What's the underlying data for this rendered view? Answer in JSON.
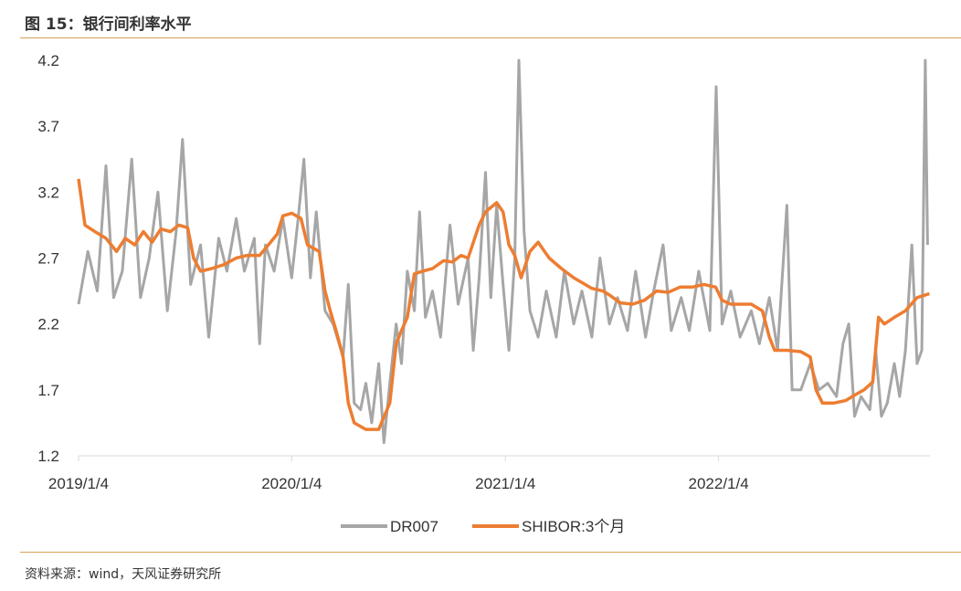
{
  "header": {
    "title": "图 15：银行间利率水平"
  },
  "footer": {
    "source": "资料来源：wind，天风证券研究所"
  },
  "chart_data": {
    "type": "line",
    "title": "",
    "xlabel": "",
    "ylabel": "",
    "ylim": [
      1.2,
      4.2
    ],
    "y_ticks": [
      "4.2",
      "3.7",
      "3.2",
      "2.7",
      "2.2",
      "1.7",
      "1.2"
    ],
    "x_ticks": [
      "2019/1/4",
      "2020/1/4",
      "2021/1/4",
      "2022/1/4"
    ],
    "x_range": [
      "2019/1/4",
      "2023/1/1"
    ],
    "legend_position": "bottom",
    "colors": {
      "DR007": "#a6a6a6",
      "SHIBOR:3个月": "#ed7d31",
      "axis": "#d9d9d9"
    },
    "series": [
      {
        "name": "DR007",
        "points": [
          [
            "2019/1/4",
            2.35
          ],
          [
            "2019/1/20",
            2.75
          ],
          [
            "2019/2/5",
            2.45
          ],
          [
            "2019/2/20",
            3.4
          ],
          [
            "2019/3/5",
            2.4
          ],
          [
            "2019/3/20",
            2.6
          ],
          [
            "2019/4/5",
            3.45
          ],
          [
            "2019/4/20",
            2.4
          ],
          [
            "2019/5/5",
            2.7
          ],
          [
            "2019/5/20",
            3.2
          ],
          [
            "2019/6/5",
            2.3
          ],
          [
            "2019/6/20",
            2.9
          ],
          [
            "2019/7/1",
            3.6
          ],
          [
            "2019/7/15",
            2.5
          ],
          [
            "2019/8/1",
            2.8
          ],
          [
            "2019/8/15",
            2.1
          ],
          [
            "2019/9/1",
            2.85
          ],
          [
            "2019/9/15",
            2.6
          ],
          [
            "2019/10/1",
            3.0
          ],
          [
            "2019/10/15",
            2.6
          ],
          [
            "2019/11/1",
            2.85
          ],
          [
            "2019/11/10",
            2.05
          ],
          [
            "2019/11/20",
            2.8
          ],
          [
            "2019/12/5",
            2.6
          ],
          [
            "2019/12/20",
            3.0
          ],
          [
            "2020/1/4",
            2.55
          ],
          [
            "2020/1/15",
            3.0
          ],
          [
            "2020/1/25",
            3.45
          ],
          [
            "2020/2/5",
            2.55
          ],
          [
            "2020/2/15",
            3.05
          ],
          [
            "2020/3/1",
            2.3
          ],
          [
            "2020/3/15",
            2.2
          ],
          [
            "2020/4/1",
            1.95
          ],
          [
            "2020/4/10",
            2.5
          ],
          [
            "2020/4/20",
            1.6
          ],
          [
            "2020/5/1",
            1.55
          ],
          [
            "2020/5/10",
            1.75
          ],
          [
            "2020/5/20",
            1.45
          ],
          [
            "2020/6/1",
            1.9
          ],
          [
            "2020/6/10",
            1.3
          ],
          [
            "2020/6/20",
            1.75
          ],
          [
            "2020/7/1",
            2.2
          ],
          [
            "2020/7/10",
            1.9
          ],
          [
            "2020/7/20",
            2.6
          ],
          [
            "2020/8/1",
            2.3
          ],
          [
            "2020/8/10",
            3.05
          ],
          [
            "2020/8/20",
            2.25
          ],
          [
            "2020/9/1",
            2.45
          ],
          [
            "2020/9/15",
            2.1
          ],
          [
            "2020/10/1",
            2.95
          ],
          [
            "2020/10/15",
            2.35
          ],
          [
            "2020/11/1",
            2.7
          ],
          [
            "2020/11/10",
            2.0
          ],
          [
            "2020/11/20",
            2.55
          ],
          [
            "2020/12/1",
            3.35
          ],
          [
            "2020/12/10",
            2.4
          ],
          [
            "2020/12/20",
            3.1
          ],
          [
            "2020/12/31",
            2.5
          ],
          [
            "2021/1/10",
            2.0
          ],
          [
            "2021/1/20",
            2.7
          ],
          [
            "2021/1/27",
            4.2
          ],
          [
            "2021/2/5",
            2.9
          ],
          [
            "2021/2/15",
            2.3
          ],
          [
            "2021/3/1",
            2.1
          ],
          [
            "2021/3/15",
            2.45
          ],
          [
            "2021/4/1",
            2.1
          ],
          [
            "2021/4/15",
            2.6
          ],
          [
            "2021/5/1",
            2.2
          ],
          [
            "2021/5/15",
            2.45
          ],
          [
            "2021/6/1",
            2.1
          ],
          [
            "2021/6/15",
            2.7
          ],
          [
            "2021/7/1",
            2.2
          ],
          [
            "2021/7/15",
            2.4
          ],
          [
            "2021/8/1",
            2.15
          ],
          [
            "2021/8/15",
            2.6
          ],
          [
            "2021/9/1",
            2.1
          ],
          [
            "2021/9/15",
            2.45
          ],
          [
            "2021/10/1",
            2.8
          ],
          [
            "2021/10/15",
            2.15
          ],
          [
            "2021/11/1",
            2.4
          ],
          [
            "2021/11/15",
            2.15
          ],
          [
            "2021/12/1",
            2.6
          ],
          [
            "2021/12/20",
            2.15
          ],
          [
            "2021/12/31",
            4.0
          ],
          [
            "2022/1/10",
            2.2
          ],
          [
            "2022/1/25",
            2.45
          ],
          [
            "2022/2/10",
            2.1
          ],
          [
            "2022/3/1",
            2.3
          ],
          [
            "2022/3/15",
            2.05
          ],
          [
            "2022/4/1",
            2.4
          ],
          [
            "2022/4/15",
            2.0
          ],
          [
            "2022/5/1",
            3.1
          ],
          [
            "2022/5/10",
            1.7
          ],
          [
            "2022/5/25",
            1.7
          ],
          [
            "2022/6/10",
            1.9
          ],
          [
            "2022/6/25",
            1.7
          ],
          [
            "2022/7/10",
            1.75
          ],
          [
            "2022/7/25",
            1.65
          ],
          [
            "2022/8/5",
            2.05
          ],
          [
            "2022/8/15",
            2.2
          ],
          [
            "2022/8/25",
            1.5
          ],
          [
            "2022/9/5",
            1.65
          ],
          [
            "2022/9/20",
            1.55
          ],
          [
            "2022/9/30",
            2.0
          ],
          [
            "2022/10/10",
            1.5
          ],
          [
            "2022/10/20",
            1.6
          ],
          [
            "2022/11/1",
            1.9
          ],
          [
            "2022/11/10",
            1.65
          ],
          [
            "2022/11/20",
            2.0
          ],
          [
            "2022/12/1",
            2.8
          ],
          [
            "2022/12/10",
            1.9
          ],
          [
            "2022/12/18",
            2.0
          ],
          [
            "2022/12/24",
            4.2
          ],
          [
            "2022/12/28",
            2.8
          ]
        ]
      },
      {
        "name": "SHIBOR:3个月",
        "points": [
          [
            "2019/1/4",
            3.3
          ],
          [
            "2019/1/15",
            2.95
          ],
          [
            "2019/2/1",
            2.9
          ],
          [
            "2019/2/20",
            2.85
          ],
          [
            "2019/3/10",
            2.75
          ],
          [
            "2019/3/25",
            2.85
          ],
          [
            "2019/4/10",
            2.8
          ],
          [
            "2019/4/25",
            2.9
          ],
          [
            "2019/5/10",
            2.82
          ],
          [
            "2019/5/25",
            2.92
          ],
          [
            "2019/6/10",
            2.9
          ],
          [
            "2019/6/25",
            2.95
          ],
          [
            "2019/7/10",
            2.93
          ],
          [
            "2019/7/20",
            2.7
          ],
          [
            "2019/8/1",
            2.6
          ],
          [
            "2019/8/20",
            2.62
          ],
          [
            "2019/9/10",
            2.65
          ],
          [
            "2019/10/1",
            2.7
          ],
          [
            "2019/10/20",
            2.72
          ],
          [
            "2019/11/10",
            2.72
          ],
          [
            "2019/11/25",
            2.8
          ],
          [
            "2019/12/10",
            2.88
          ],
          [
            "2019/12/20",
            3.02
          ],
          [
            "2020/1/4",
            3.04
          ],
          [
            "2020/1/20",
            3.0
          ],
          [
            "2020/1/31",
            2.8
          ],
          [
            "2020/2/20",
            2.75
          ],
          [
            "2020/3/1",
            2.45
          ],
          [
            "2020/3/10",
            2.3
          ],
          [
            "2020/3/20",
            2.15
          ],
          [
            "2020/4/1",
            1.95
          ],
          [
            "2020/4/10",
            1.6
          ],
          [
            "2020/4/20",
            1.45
          ],
          [
            "2020/5/10",
            1.4
          ],
          [
            "2020/6/1",
            1.4
          ],
          [
            "2020/6/20",
            1.6
          ],
          [
            "2020/7/1",
            2.05
          ],
          [
            "2020/7/10",
            2.15
          ],
          [
            "2020/7/20",
            2.25
          ],
          [
            "2020/8/1",
            2.58
          ],
          [
            "2020/8/15",
            2.6
          ],
          [
            "2020/9/1",
            2.62
          ],
          [
            "2020/9/20",
            2.68
          ],
          [
            "2020/10/5",
            2.67
          ],
          [
            "2020/10/20",
            2.72
          ],
          [
            "2020/11/1",
            2.7
          ],
          [
            "2020/11/20",
            2.95
          ],
          [
            "2020/12/1",
            3.05
          ],
          [
            "2020/12/20",
            3.12
          ],
          [
            "2020/12/31",
            3.05
          ],
          [
            "2021/1/10",
            2.8
          ],
          [
            "2021/1/20",
            2.72
          ],
          [
            "2021/1/31",
            2.55
          ],
          [
            "2021/2/15",
            2.75
          ],
          [
            "2021/3/1",
            2.82
          ],
          [
            "2021/3/20",
            2.7
          ],
          [
            "2021/4/10",
            2.62
          ],
          [
            "2021/5/1",
            2.55
          ],
          [
            "2021/6/1",
            2.47
          ],
          [
            "2021/6/20",
            2.45
          ],
          [
            "2021/7/1",
            2.42
          ],
          [
            "2021/7/20",
            2.36
          ],
          [
            "2021/8/10",
            2.35
          ],
          [
            "2021/8/30",
            2.38
          ],
          [
            "2021/9/20",
            2.45
          ],
          [
            "2021/10/10",
            2.44
          ],
          [
            "2021/10/30",
            2.48
          ],
          [
            "2021/11/20",
            2.48
          ],
          [
            "2021/12/10",
            2.5
          ],
          [
            "2021/12/30",
            2.48
          ],
          [
            "2022/1/10",
            2.38
          ],
          [
            "2022/1/25",
            2.35
          ],
          [
            "2022/2/10",
            2.35
          ],
          [
            "2022/3/1",
            2.35
          ],
          [
            "2022/3/20",
            2.3
          ],
          [
            "2022/4/1",
            2.1
          ],
          [
            "2022/4/10",
            2.0
          ],
          [
            "2022/5/1",
            2.0
          ],
          [
            "2022/5/25",
            1.99
          ],
          [
            "2022/6/10",
            1.95
          ],
          [
            "2022/6/20",
            1.7
          ],
          [
            "2022/7/1",
            1.6
          ],
          [
            "2022/7/20",
            1.6
          ],
          [
            "2022/8/10",
            1.62
          ],
          [
            "2022/8/25",
            1.66
          ],
          [
            "2022/9/10",
            1.7
          ],
          [
            "2022/9/25",
            1.76
          ],
          [
            "2022/10/5",
            2.25
          ],
          [
            "2022/10/15",
            2.2
          ],
          [
            "2022/11/1",
            2.25
          ],
          [
            "2022/11/20",
            2.3
          ],
          [
            "2022/12/10",
            2.4
          ],
          [
            "2022/12/31",
            2.43
          ]
        ]
      }
    ]
  }
}
